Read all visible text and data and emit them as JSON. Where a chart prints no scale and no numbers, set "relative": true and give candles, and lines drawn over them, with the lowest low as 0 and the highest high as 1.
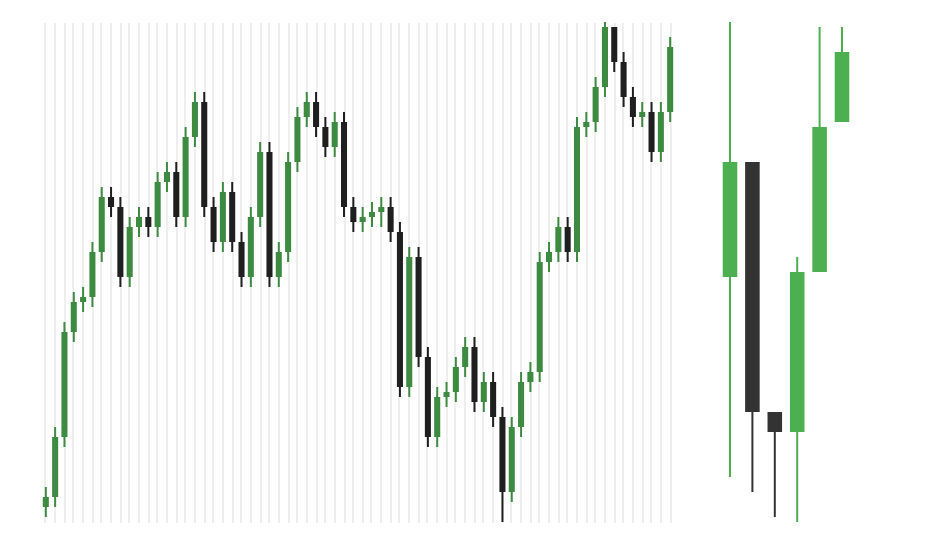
{
  "chart_data": [
    {
      "type": "candlestick",
      "relative": true,
      "grid": "x",
      "colors": [
        "#3d8b40",
        "#3d8b40",
        "#3d8b40",
        "#3d8b40",
        "#3d8b40",
        "#3d8b40",
        "#3d8b40",
        "#1f1f1f",
        "#1f1f1f",
        "#3d8b40",
        "#3d8b40",
        "#1f1f1f",
        "#3d8b40",
        "#3d8b40",
        "#1f1f1f",
        "#3d8b40",
        "#3d8b40",
        "#1f1f1f",
        "#1f1f1f",
        "#3d8b40",
        "#1f1f1f",
        "#1f1f1f",
        "#3d8b40",
        "#3d8b40",
        "#1f1f1f",
        "#3d8b40",
        "#3d8b40",
        "#3d8b40",
        "#3d8b40",
        "#1f1f1f",
        "#1f1f1f",
        "#3d8b40",
        "#1f1f1f",
        "#1f1f1f",
        "#3d8b40",
        "#3d8b40",
        "#3d8b40",
        "#1f1f1f",
        "#1f1f1f",
        "#3d8b40",
        "#1f1f1f",
        "#1f1f1f",
        "#3d8b40",
        "#3d8b40",
        "#3d8b40",
        "#3d8b40",
        "#1f1f1f",
        "#3d8b40",
        "#1f1f1f",
        "#1f1f1f",
        "#3d8b40",
        "#3d8b40",
        "#3d8b40",
        "#3d8b40",
        "#3d8b40",
        "#3d8b40",
        "#1f1f1f",
        "#3d8b40",
        "#3d8b40",
        "#3d8b40",
        "#3d8b40",
        "#1f1f1f",
        "#1f1f1f",
        "#1f1f1f",
        "#3d8b40",
        "#1f1f1f",
        "#3d8b40",
        "#3d8b40"
      ],
      "categories": [
        null,
        null,
        null,
        null,
        null,
        null,
        null,
        null,
        null,
        null,
        null,
        null,
        null,
        null,
        null,
        null,
        null,
        null,
        null,
        null,
        null,
        null,
        null,
        null,
        null,
        null,
        null,
        null,
        null,
        null,
        null,
        null,
        null,
        null,
        null,
        null,
        null,
        null,
        null,
        null,
        null,
        null,
        null,
        null,
        null,
        null,
        null,
        null,
        null,
        null,
        null,
        null,
        null,
        null,
        null,
        null,
        null,
        null,
        null,
        null,
        null,
        null,
        null,
        null,
        null,
        null,
        null,
        null
      ],
      "ohlc": [
        [
          0.03,
          0.07,
          0.01,
          0.05
        ],
        [
          0.05,
          0.19,
          0.03,
          0.17
        ],
        [
          0.17,
          0.4,
          0.15,
          0.38
        ],
        [
          0.38,
          0.46,
          0.36,
          0.44
        ],
        [
          0.44,
          0.47,
          0.42,
          0.45
        ],
        [
          0.45,
          0.56,
          0.43,
          0.54
        ],
        [
          0.54,
          0.67,
          0.52,
          0.65
        ],
        [
          0.65,
          0.67,
          0.61,
          0.63
        ],
        [
          0.63,
          0.65,
          0.47,
          0.49
        ],
        [
          0.49,
          0.61,
          0.47,
          0.59
        ],
        [
          0.59,
          0.63,
          0.57,
          0.61
        ],
        [
          0.61,
          0.63,
          0.57,
          0.59
        ],
        [
          0.59,
          0.7,
          0.57,
          0.68
        ],
        [
          0.68,
          0.72,
          0.66,
          0.7
        ],
        [
          0.7,
          0.72,
          0.59,
          0.61
        ],
        [
          0.61,
          0.79,
          0.59,
          0.77
        ],
        [
          0.77,
          0.86,
          0.75,
          0.84
        ],
        [
          0.84,
          0.86,
          0.61,
          0.63
        ],
        [
          0.63,
          0.65,
          0.54,
          0.56
        ],
        [
          0.56,
          0.68,
          0.54,
          0.66
        ],
        [
          0.66,
          0.68,
          0.54,
          0.56
        ],
        [
          0.56,
          0.58,
          0.47,
          0.49
        ],
        [
          0.49,
          0.63,
          0.47,
          0.61
        ],
        [
          0.61,
          0.76,
          0.59,
          0.74
        ],
        [
          0.74,
          0.76,
          0.47,
          0.49
        ],
        [
          0.49,
          0.56,
          0.47,
          0.54
        ],
        [
          0.54,
          0.74,
          0.52,
          0.72
        ],
        [
          0.72,
          0.83,
          0.7,
          0.81
        ],
        [
          0.81,
          0.86,
          0.79,
          0.84
        ],
        [
          0.84,
          0.86,
          0.77,
          0.79
        ],
        [
          0.79,
          0.81,
          0.73,
          0.75
        ],
        [
          0.75,
          0.82,
          0.73,
          0.8
        ],
        [
          0.8,
          0.82,
          0.61,
          0.63
        ],
        [
          0.63,
          0.65,
          0.58,
          0.6
        ],
        [
          0.6,
          0.63,
          0.58,
          0.61
        ],
        [
          0.61,
          0.64,
          0.59,
          0.62
        ],
        [
          0.62,
          0.65,
          0.59,
          0.63
        ],
        [
          0.63,
          0.65,
          0.56,
          0.58
        ],
        [
          0.58,
          0.6,
          0.25,
          0.27
        ],
        [
          0.27,
          0.55,
          0.25,
          0.53
        ],
        [
          0.53,
          0.55,
          0.31,
          0.33
        ],
        [
          0.33,
          0.35,
          0.15,
          0.17
        ],
        [
          0.17,
          0.27,
          0.15,
          0.25
        ],
        [
          0.25,
          0.28,
          0.23,
          0.26
        ],
        [
          0.26,
          0.33,
          0.24,
          0.31
        ],
        [
          0.31,
          0.37,
          0.29,
          0.35
        ],
        [
          0.35,
          0.37,
          0.22,
          0.24
        ],
        [
          0.24,
          0.3,
          0.22,
          0.28
        ],
        [
          0.28,
          0.3,
          0.19,
          0.21
        ],
        [
          0.21,
          0.23,
          0,
          0.06
        ],
        [
          0.06,
          0.21,
          0.04,
          0.19
        ],
        [
          0.19,
          0.3,
          0.17,
          0.28
        ],
        [
          0.28,
          0.32,
          0.26,
          0.3
        ],
        [
          0.3,
          0.54,
          0.28,
          0.52
        ],
        [
          0.52,
          0.56,
          0.5,
          0.54
        ],
        [
          0.54,
          0.61,
          0.52,
          0.59
        ],
        [
          0.59,
          0.61,
          0.52,
          0.54
        ],
        [
          0.54,
          0.81,
          0.52,
          0.79
        ],
        [
          0.79,
          0.82,
          0.77,
          0.8
        ],
        [
          0.8,
          0.89,
          0.78,
          0.87
        ],
        [
          0.87,
          1,
          0.85,
          0.99
        ],
        [
          0.99,
          0.99,
          0.9,
          0.92
        ],
        [
          0.92,
          0.94,
          0.83,
          0.85
        ],
        [
          0.85,
          0.87,
          0.79,
          0.81
        ],
        [
          0.81,
          0.84,
          0.79,
          0.82
        ],
        [
          0.82,
          0.84,
          0.72,
          0.74
        ],
        [
          0.74,
          0.84,
          0.72,
          0.82
        ],
        [
          0.82,
          0.97,
          0.8,
          0.95
        ]
      ]
    },
    {
      "type": "candlestick",
      "relative": true,
      "colors": [
        "#4caf50",
        "#333333",
        "#333333",
        "#4caf50",
        "#4caf50",
        "#4caf50"
      ],
      "grid": false,
      "categories": [
        null,
        null,
        null,
        null,
        null,
        null
      ],
      "ohlc": [
        [
          0.49,
          1,
          0.09,
          0.72
        ],
        [
          0.72,
          0.72,
          0.06,
          0.22
        ],
        [
          0.22,
          0.22,
          0.01,
          0.18
        ],
        [
          0.18,
          0.53,
          0,
          0.5
        ],
        [
          0.5,
          0.99,
          0.5,
          0.79
        ],
        [
          0.8,
          0.99,
          0.8,
          0.94
        ]
      ]
    }
  ]
}
